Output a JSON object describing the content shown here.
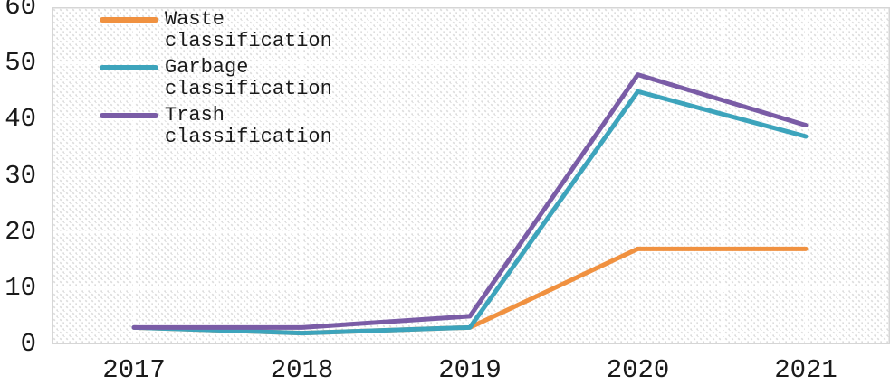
{
  "chart_data": {
    "type": "line",
    "title": "",
    "xlabel": "",
    "ylabel": "",
    "categories": [
      "2017",
      "2018",
      "2019",
      "2020",
      "2021"
    ],
    "series": [
      {
        "name": "Waste classification",
        "color": "#F09140",
        "values": [
          3,
          2,
          3,
          17,
          17
        ]
      },
      {
        "name": "Garbage classification",
        "color": "#3DA4BC",
        "values": [
          3,
          2,
          3,
          45,
          37
        ]
      },
      {
        "name": "Trash classification",
        "color": "#7A5CA6",
        "values": [
          3,
          3,
          5,
          48,
          39
        ]
      }
    ],
    "ylim": [
      0,
      60
    ],
    "yticks": [
      0,
      10,
      20,
      30,
      40,
      50,
      60
    ],
    "grid": "on",
    "gridline_color": "#ffffff",
    "plot_background": "diagonal-hatch",
    "hatch_color": "#dcdcdc",
    "plot_border_color": "#d6d6d6",
    "axis_text_color": "#1a1a1a",
    "legend_position": "top-left"
  }
}
